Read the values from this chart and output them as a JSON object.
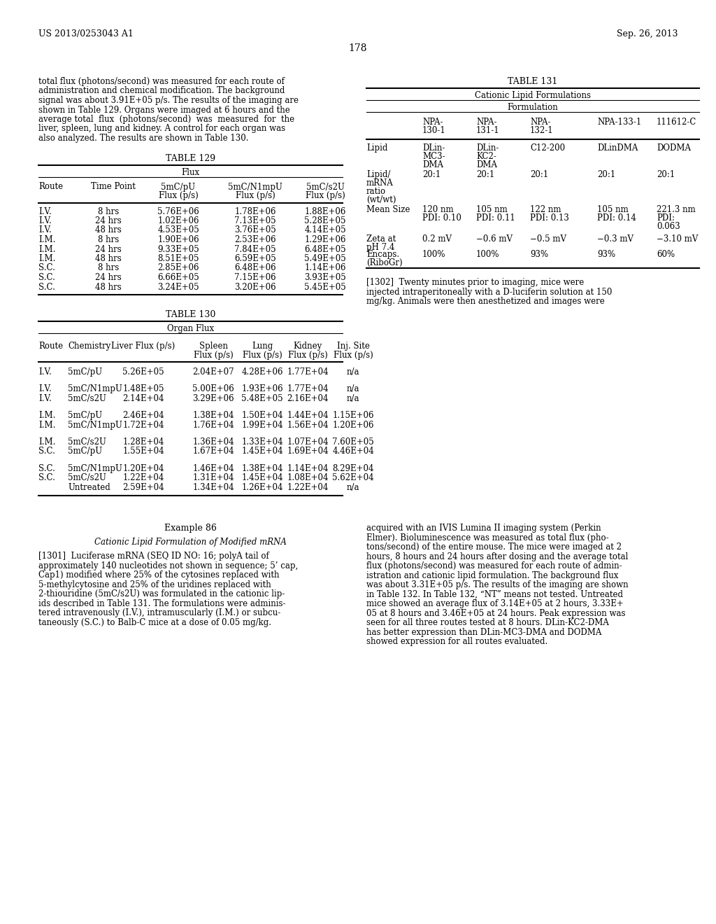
{
  "page_number": "178",
  "patent_left": "US 2013/0253043 A1",
  "patent_right": "Sep. 26, 2013",
  "background_color": "#ffffff",
  "left_para_lines": [
    "total flux (photons/second) was measured for each route of",
    "administration and chemical modification. The background",
    "signal was about 3.91E+05 p/s. The results of the imaging are",
    "shown in Table 129. Organs were imaged at 6 hours and the",
    "average total  flux  (photons/second)  was  measured  for  the",
    "liver, spleen, lung and kidney. A control for each organ was",
    "also analyzed. The results are shown in Table 130."
  ],
  "t129_rows": [
    [
      "I.V.",
      "8 hrs",
      "5.76E+06",
      "1.78E+06",
      "1.88E+06"
    ],
    [
      "I.V.",
      "24 hrs",
      "1.02E+06",
      "7.13E+05",
      "5.28E+05"
    ],
    [
      "I.V.",
      "48 hrs",
      "4.53E+05",
      "3.76E+05",
      "4.14E+05"
    ],
    [
      "I.M.",
      "8 hrs",
      "1.90E+06",
      "2.53E+06",
      "1.29E+06"
    ],
    [
      "I.M.",
      "24 hrs",
      "9.33E+05",
      "7.84E+05",
      "6.48E+05"
    ],
    [
      "I.M.",
      "48 hrs",
      "8.51E+05",
      "6.59E+05",
      "5.49E+05"
    ],
    [
      "S.C.",
      "8 hrs",
      "2.85E+06",
      "6.48E+06",
      "1.14E+06"
    ],
    [
      "S.C.",
      "24 hrs",
      "6.66E+05",
      "7.15E+06",
      "3.93E+05"
    ],
    [
      "S.C.",
      "48 hrs",
      "3.24E+05",
      "3.20E+06",
      "5.45E+05"
    ]
  ],
  "t130_rows": [
    [
      "I.V.",
      "5mC/pU",
      "5.26E+05",
      "2.04E+07",
      "4.28E+06",
      "1.77E+04",
      "n/a",
      false
    ],
    [
      "I.V.",
      "5mC/N1mpU",
      "1.48E+05",
      "5.00E+06",
      "1.93E+06",
      "1.77E+04",
      "n/a",
      true
    ],
    [
      "I.V.",
      "5mC/s2U",
      "2.14E+04",
      "3.29E+06",
      "5.48E+05",
      "2.16E+04",
      "n/a",
      false
    ],
    [
      "I.M.",
      "5mC/pU",
      "2.46E+04",
      "1.38E+04",
      "1.50E+04",
      "1.44E+04",
      "1.15E+06",
      true
    ],
    [
      "I.M.",
      "5mC/N1mpU",
      "1.72E+04",
      "1.76E+04",
      "1.99E+04",
      "1.56E+04",
      "1.20E+06",
      false
    ],
    [
      "I.M.",
      "5mC/s2U",
      "1.28E+04",
      "1.36E+04",
      "1.33E+04",
      "1.07E+04",
      "7.60E+05",
      true
    ],
    [
      "S.C.",
      "5mC/pU",
      "1.55E+04",
      "1.67E+04",
      "1.45E+04",
      "1.69E+04",
      "4.46E+04",
      false
    ],
    [
      "S.C.",
      "5mC/N1mpU",
      "1.20E+04",
      "1.46E+04",
      "1.38E+04",
      "1.14E+04",
      "8.29E+04",
      true
    ],
    [
      "S.C.",
      "5mC/s2U",
      "1.22E+04",
      "1.31E+04",
      "1.45E+04",
      "1.08E+04",
      "5.62E+04",
      false
    ],
    [
      "",
      "Untreated",
      "2.59E+04",
      "1.34E+04",
      "1.26E+04",
      "1.22E+04",
      "n/a",
      false
    ]
  ],
  "t131_row_labels": [
    "Lipid",
    "Lipid/\nmRNA\nratio\n(wt/wt)",
    "Mean Size",
    "Zeta at\npH 7.4",
    "Encaps.\n(RiboGr)"
  ],
  "t131_col_headers": [
    "NPA-\n130-1",
    "NPA-\n131-1",
    "NPA-\n132-1",
    "NPA-133-1",
    "111612-C"
  ],
  "t131_data": [
    [
      "DLin-\nMC3-\nDMA",
      "DLin-\nKC2-\nDMA",
      "C12-200",
      "DLinDMA",
      "DODMA"
    ],
    [
      "20:1",
      "20:1",
      "20:1",
      "20:1",
      "20:1"
    ],
    [
      "120 nm\nPDI: 0.10",
      "105 nm\nPDI: 0.11",
      "122 nm\nPDI: 0.13",
      "105 nm\nPDI: 0.14",
      "221.3 nm\nPDI:\n0.063"
    ],
    [
      "0.2 mV",
      "−0.6 mV",
      "−0.5 mV",
      "−0.3 mV",
      "−3.10 mV"
    ],
    [
      "100%",
      "100%",
      "93%",
      "93%",
      "60%"
    ]
  ],
  "p1302_lines": [
    "[1302]  Twenty minutes prior to imaging, mice were",
    "injected intraperitoneally with a D-luciferin solution at 150",
    "mg/kg. Animals were then anesthetized and images were"
  ],
  "example86_lines": [
    "Example 86",
    "Cationic Lipid Formulation of Modified mRNA"
  ],
  "p1301_lines": [
    "[1301]  Luciferase mRNA (SEQ ID NO: 16; polyA tail of",
    "approximately 140 nucleotides not shown in sequence; 5’ cap,",
    "Cap1) modified where 25% of the cytosines replaced with",
    "5-methylcytosine and 25% of the uridines replaced with",
    "2-thiouridine (5mC/s2U) was formulated in the cationic lip-",
    "ids described in Table 131. The formulations were adminis-",
    "tered intravenously (I.V.), intramuscularly (I.M.) or subcu-",
    "taneously (S.C.) to Balb-C mice at a dose of 0.05 mg/kg."
  ],
  "right_bottom_lines": [
    "acquired with an IVIS Lumina II imaging system (Perkin",
    "Elmer). Bioluminescence was measured as total flux (pho-",
    "tons/second) of the entire mouse. The mice were imaged at 2",
    "hours, 8 hours and 24 hours after dosing and the average total",
    "flux (photons/second) was measured for each route of admin-",
    "istration and cationic lipid formulation. The background flux",
    "was about 3.31E+05 p/s. The results of the imaging are shown",
    "in Table 132. In Table 132, “NT” means not tested. Untreated",
    "mice showed an average flux of 3.14E+05 at 2 hours, 3.33E+",
    "05 at 8 hours and 3.46E+05 at 24 hours. Peak expression was",
    "seen for all three routes tested at 8 hours. DLin-KC2-DMA",
    "has better expression than DLin-MC3-DMA and DODMA",
    "showed expression for all routes evaluated."
  ]
}
